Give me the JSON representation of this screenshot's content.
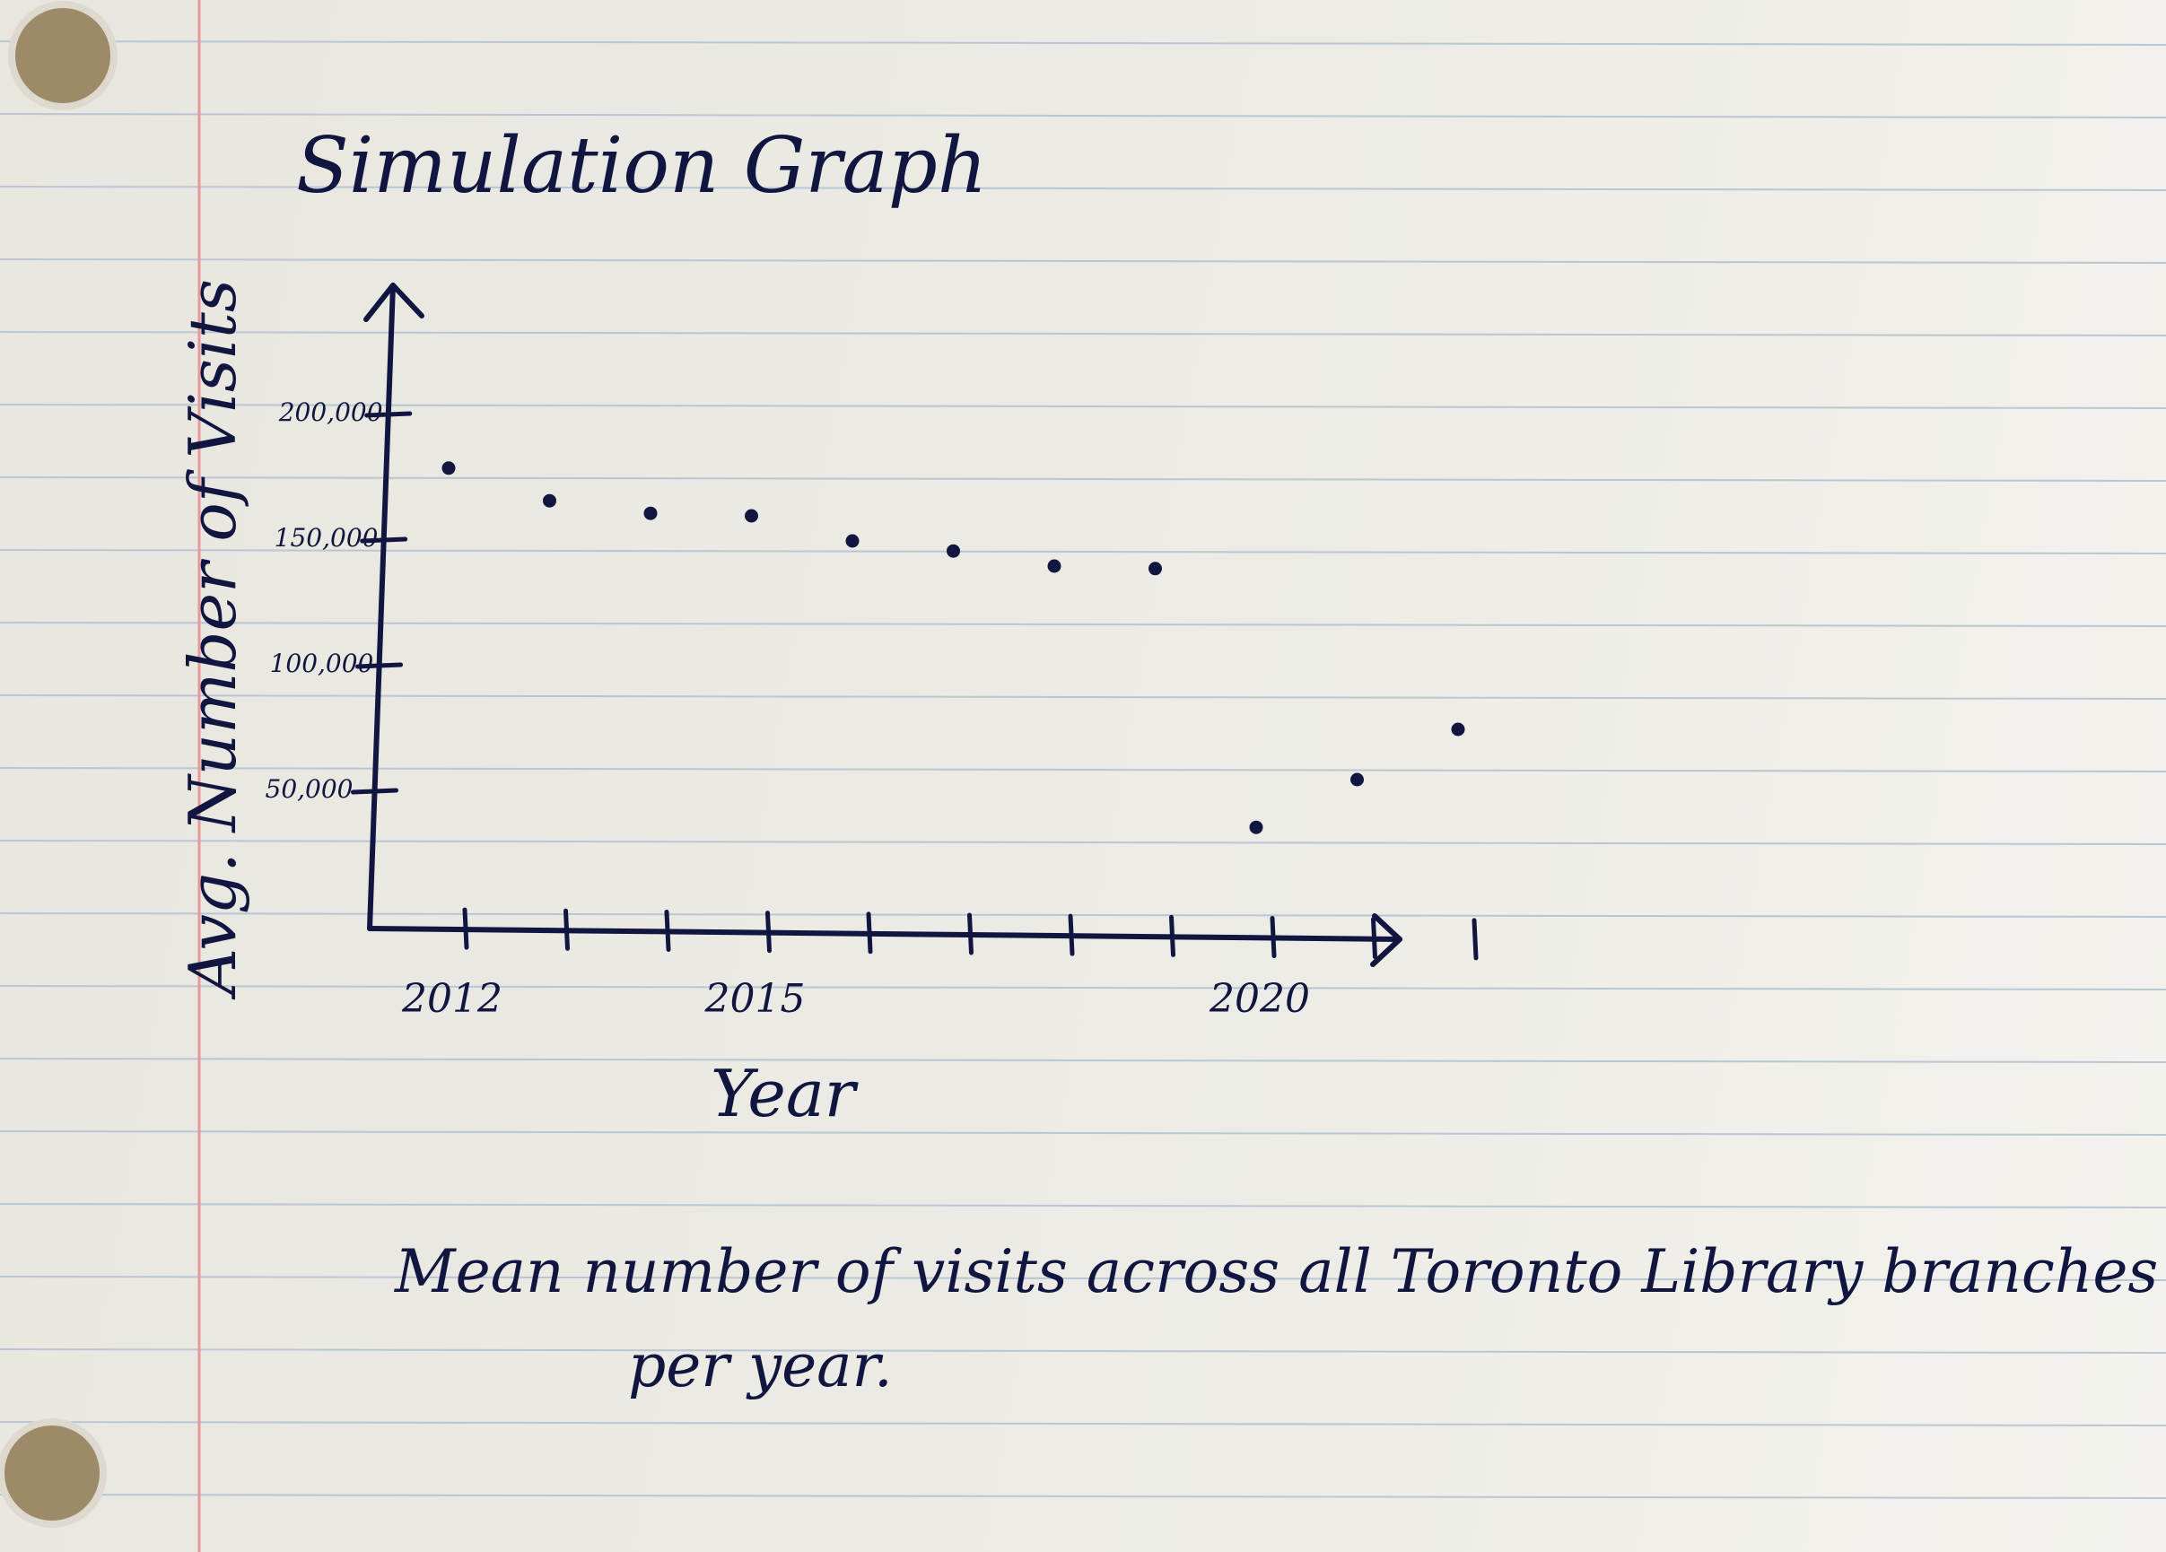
{
  "chart_data": {
    "type": "scatter",
    "title": "Simulation Graph",
    "xlabel": "Year",
    "ylabel": "Avg. Number of Visits",
    "caption_line1": "Mean number of visits across all Toronto Library branches",
    "caption_line2": "per year.",
    "x_ticks": [
      2012,
      2015,
      2020
    ],
    "y_ticks": [
      "50,000",
      "100,000",
      "150,000",
      "200,000"
    ],
    "y_tick_values": [
      50000,
      100000,
      150000,
      200000
    ],
    "xlim": [
      2011,
      2023
    ],
    "ylim": [
      0,
      220000
    ],
    "grid": false,
    "legend": "none",
    "colors": {
      "ink": "#10163f",
      "rule_line": "#b9c6d3",
      "margin_line": "#e49a9a"
    },
    "series": [
      {
        "x": [
          2012,
          2013,
          2014,
          2015,
          2016,
          2017,
          2018,
          2019,
          2020,
          2021,
          2022
        ],
        "y": [
          179000,
          166000,
          161000,
          160000,
          150000,
          146000,
          140000,
          139000,
          36000,
          55000,
          75000
        ]
      }
    ]
  }
}
